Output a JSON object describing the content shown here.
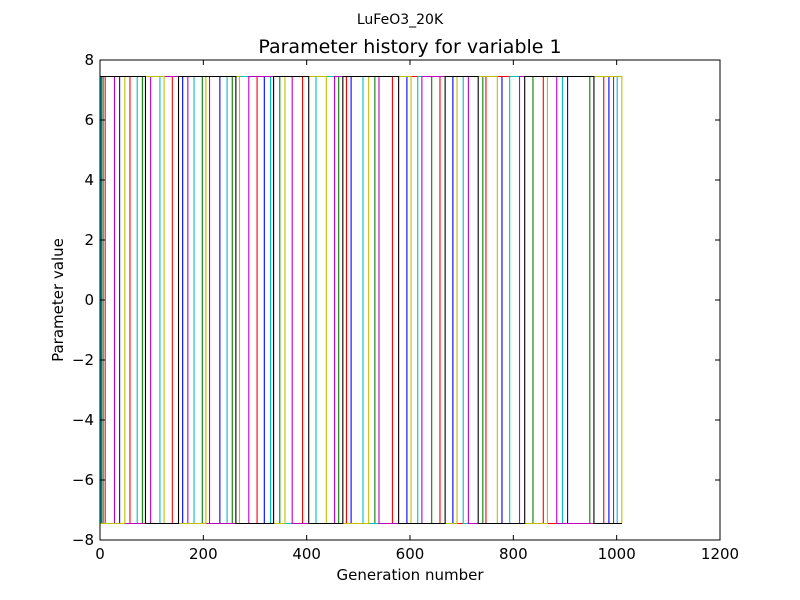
{
  "chart_data": {
    "type": "line",
    "suptitle": "LuFeO3_20K",
    "title": "Parameter history for variable 1",
    "xlabel": "Generation number",
    "ylabel": "Parameter value",
    "xlim": [
      0,
      1200
    ],
    "ylim": [
      -8,
      8
    ],
    "xticks": [
      0,
      200,
      400,
      600,
      800,
      1000,
      1200
    ],
    "yticks": [
      -8,
      -6,
      -4,
      -2,
      0,
      2,
      4,
      6,
      8
    ],
    "xtick_labels": [
      "0",
      "200",
      "400",
      "600",
      "800",
      "1000",
      "1200"
    ],
    "ytick_labels": [
      "−8",
      "−6",
      "−4",
      "−2",
      "0",
      "2",
      "4",
      "6",
      "8"
    ],
    "grid": false,
    "levels": {
      "high": 7.45,
      "low": -7.45
    },
    "x_end": 1010,
    "series_colors": [
      "#0000ff",
      "#008000",
      "#ff0000",
      "#00bfbf",
      "#bf00bf",
      "#bfbf00",
      "#000000"
    ],
    "series": [
      {
        "color": "#0000ff",
        "start": "high",
        "switches": [
          3,
          38,
          160,
          232,
          318,
          486,
          594,
          683,
          778,
          905,
          985
        ]
      },
      {
        "color": "#008000",
        "start": "low",
        "switches": [
          6,
          82,
          198,
          256,
          348,
          462,
          532,
          642,
          741,
          838,
          948
        ]
      },
      {
        "color": "#ff0000",
        "start": "high",
        "switches": [
          10,
          58,
          140,
          212,
          304,
          392,
          477,
          566,
          658,
          747,
          858,
          975
        ]
      },
      {
        "color": "#00bfbf",
        "start": "low",
        "switches": [
          2,
          72,
          116,
          182,
          246,
          330,
          418,
          509,
          615,
          703,
          793,
          895,
          1001
        ]
      },
      {
        "color": "#bf00bf",
        "start": "high",
        "switches": [
          28,
          98,
          170,
          288,
          372,
          454,
          540,
          623,
          713,
          812,
          884,
          994
        ]
      },
      {
        "color": "#bfbf00",
        "start": "low",
        "switches": [
          48,
          124,
          205,
          270,
          358,
          438,
          520,
          602,
          691,
          769,
          866,
          1010
        ]
      },
      {
        "color": "#000000",
        "start": "high",
        "switches": [
          88,
          152,
          263,
          336,
          404,
          470,
          578,
          668,
          732,
          822,
          956
        ]
      }
    ]
  }
}
